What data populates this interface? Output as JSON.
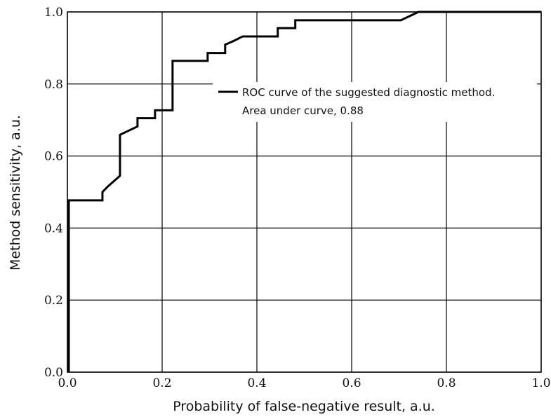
{
  "chart_data": {
    "type": "line",
    "title": "",
    "xlabel": "Probability of false-negative result, a.u.",
    "ylabel": "Method sensitivity, a.u.",
    "xlim": [
      0,
      1
    ],
    "ylim": [
      0,
      1
    ],
    "grid": true,
    "x_ticks": [
      0,
      0.2,
      0.4,
      0.6,
      0.8,
      1
    ],
    "x_tick_labels": [
      "0.0",
      "0.2",
      "0.4",
      "0.6",
      "0.8",
      "1.0"
    ],
    "y_ticks": [
      0,
      0.2,
      0.4,
      0.6,
      0.8,
      1
    ],
    "y_tick_labels": [
      "0.0",
      "0.2",
      "0.4",
      "0.6",
      "0.8",
      "1.0"
    ],
    "legend": {
      "placement": "upper-right",
      "entries": [
        {
          "line1": "ROC curve of the suggested diagnostic method.",
          "line2": "Area under curve, 0.88"
        }
      ]
    },
    "series": [
      {
        "color": "#000000",
        "x": [
          0.003,
          0.003,
          0.074,
          0.074,
          0.085,
          0.111,
          0.111,
          0.148,
          0.148,
          0.185,
          0.185,
          0.222,
          0.222,
          0.296,
          0.296,
          0.333,
          0.333,
          0.352,
          0.37,
          0.444,
          0.444,
          0.481,
          0.481,
          0.704,
          0.741,
          1.0
        ],
        "y": [
          0.0,
          0.477,
          0.477,
          0.5,
          0.515,
          0.545,
          0.659,
          0.682,
          0.705,
          0.705,
          0.727,
          0.727,
          0.864,
          0.864,
          0.886,
          0.886,
          0.909,
          0.92,
          0.932,
          0.932,
          0.955,
          0.955,
          0.977,
          0.977,
          1.0,
          1.0
        ]
      }
    ]
  }
}
